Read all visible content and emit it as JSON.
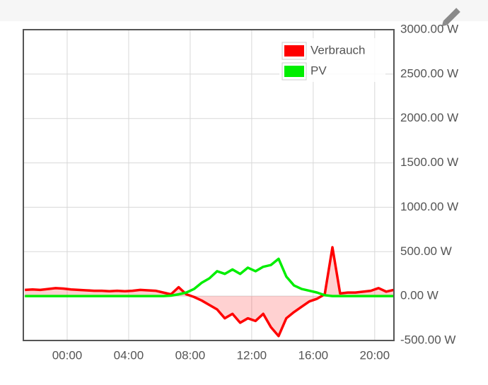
{
  "chart_data": {
    "type": "line",
    "x": [
      -2.75,
      -2.25,
      -1.75,
      -1.25,
      -0.75,
      -0.25,
      0.25,
      0.75,
      1.25,
      1.75,
      2.25,
      2.75,
      3.25,
      3.75,
      4.25,
      4.75,
      5.25,
      5.75,
      6.25,
      6.75,
      7.25,
      7.75,
      8.25,
      8.75,
      9.25,
      9.75,
      10.25,
      10.75,
      11.25,
      11.75,
      12.25,
      12.75,
      13.25,
      13.75,
      14.25,
      14.75,
      15.25,
      15.75,
      16.25,
      16.75,
      17.25,
      17.75,
      18.25,
      18.75,
      19.25,
      19.75,
      20.25,
      20.75,
      21.25
    ],
    "series": [
      {
        "name": "Verbrauch",
        "color": "#ff0000",
        "fill": true,
        "values": [
          70,
          75,
          70,
          80,
          90,
          85,
          75,
          70,
          65,
          60,
          60,
          55,
          60,
          55,
          60,
          70,
          65,
          60,
          40,
          20,
          100,
          20,
          -10,
          -50,
          -100,
          -150,
          -250,
          -200,
          -300,
          -250,
          -280,
          -200,
          -350,
          -450,
          -250,
          -180,
          -120,
          -60,
          -30,
          20,
          550,
          30,
          40,
          40,
          50,
          60,
          90,
          50,
          70
        ]
      },
      {
        "name": "PV",
        "color": "#00ee00",
        "values": [
          0,
          0,
          0,
          0,
          0,
          0,
          0,
          0,
          0,
          0,
          0,
          0,
          0,
          0,
          0,
          0,
          0,
          0,
          0,
          5,
          20,
          40,
          80,
          150,
          200,
          280,
          250,
          300,
          250,
          320,
          280,
          330,
          350,
          420,
          220,
          120,
          80,
          60,
          40,
          10,
          0,
          0,
          0,
          0,
          0,
          0,
          0,
          0,
          0
        ]
      }
    ],
    "xlim": [
      -2.85,
      21.25
    ],
    "xticks": [
      {
        "value": 0,
        "label": "00:00"
      },
      {
        "value": 4,
        "label": "04:00"
      },
      {
        "value": 8,
        "label": "08:00"
      },
      {
        "value": 12,
        "label": "12:00"
      },
      {
        "value": 16,
        "label": "16:00"
      },
      {
        "value": 20,
        "label": "20:00"
      }
    ],
    "ylim": [
      -500,
      3000
    ],
    "yticks": [
      {
        "value": -500,
        "label": "-500.00 W"
      },
      {
        "value": 0,
        "label": "0.00 W"
      },
      {
        "value": 500,
        "label": "500.00 W"
      },
      {
        "value": 1000,
        "label": "1000.00 W"
      },
      {
        "value": 1500,
        "label": "1500.00 W"
      },
      {
        "value": 2000,
        "label": "2000.00 W"
      },
      {
        "value": 2500,
        "label": "2500.00 W"
      },
      {
        "value": 3000,
        "label": "3000.00 W"
      }
    ],
    "grid": true,
    "legend": "top-right"
  }
}
